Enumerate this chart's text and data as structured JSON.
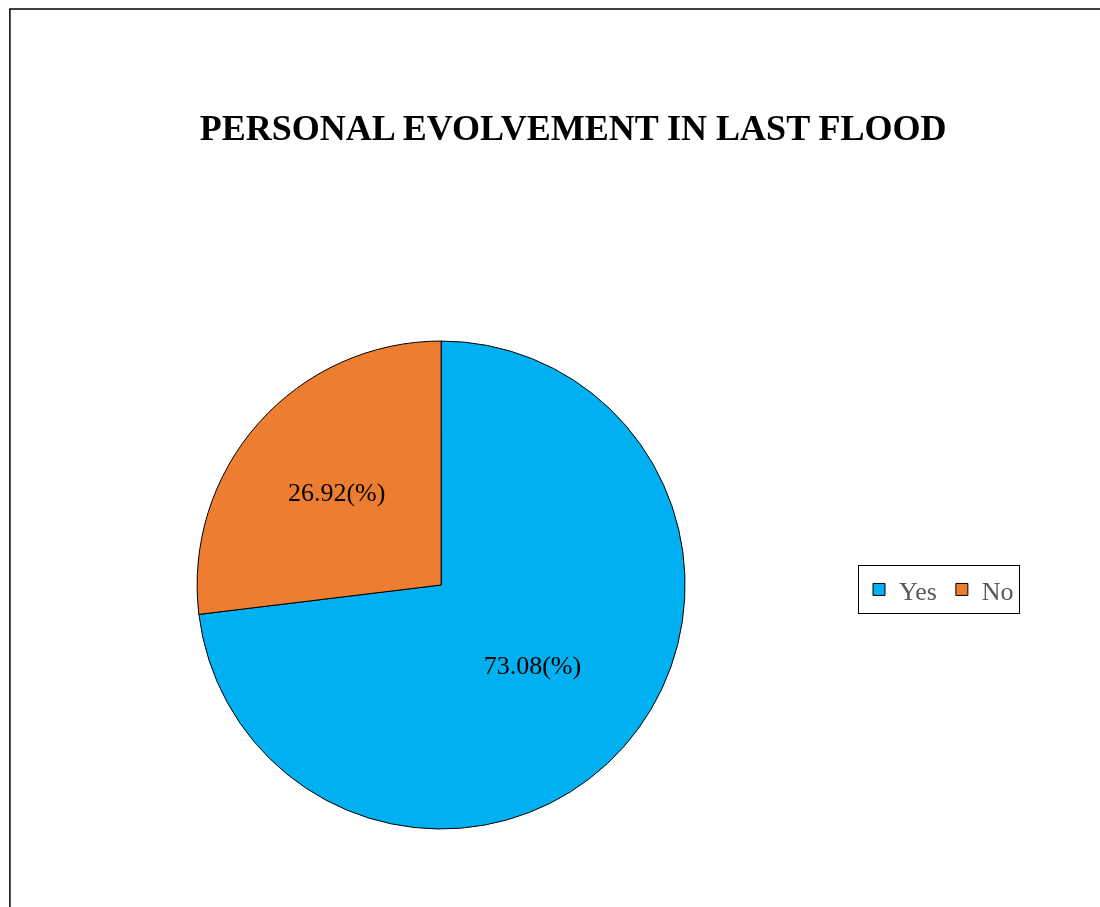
{
  "chart_data": {
    "type": "pie",
    "title": "PERSONAL EVOLVEMENT IN LAST FLOOD",
    "categories": [
      "Yes",
      "No"
    ],
    "values": [
      73.08,
      26.92
    ],
    "colors": [
      "#00b0f0",
      "#ed7d31"
    ],
    "value_labels": [
      "73.08(%)",
      "26.92(%)"
    ],
    "legend": "right"
  }
}
